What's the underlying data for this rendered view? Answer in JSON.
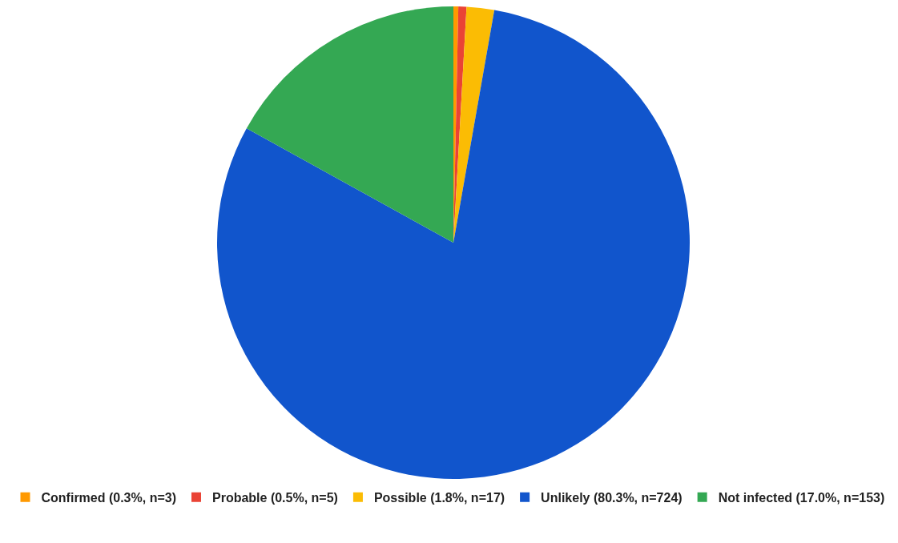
{
  "chart_data": {
    "type": "pie",
    "categories": [
      "Confirmed (0.3%, n=3)",
      "Probable (0.5%, n=5)",
      "Possible (1.8%, n=17)",
      "Unlikely (80.3%, n=724)",
      "Not infected (17.0%, n=153)"
    ],
    "values": [
      3,
      5,
      17,
      724,
      153
    ],
    "colors": [
      "#ff9900",
      "#ea4335",
      "#fbbc04",
      "#1155cc",
      "#34a853"
    ],
    "legend": "bottom"
  }
}
